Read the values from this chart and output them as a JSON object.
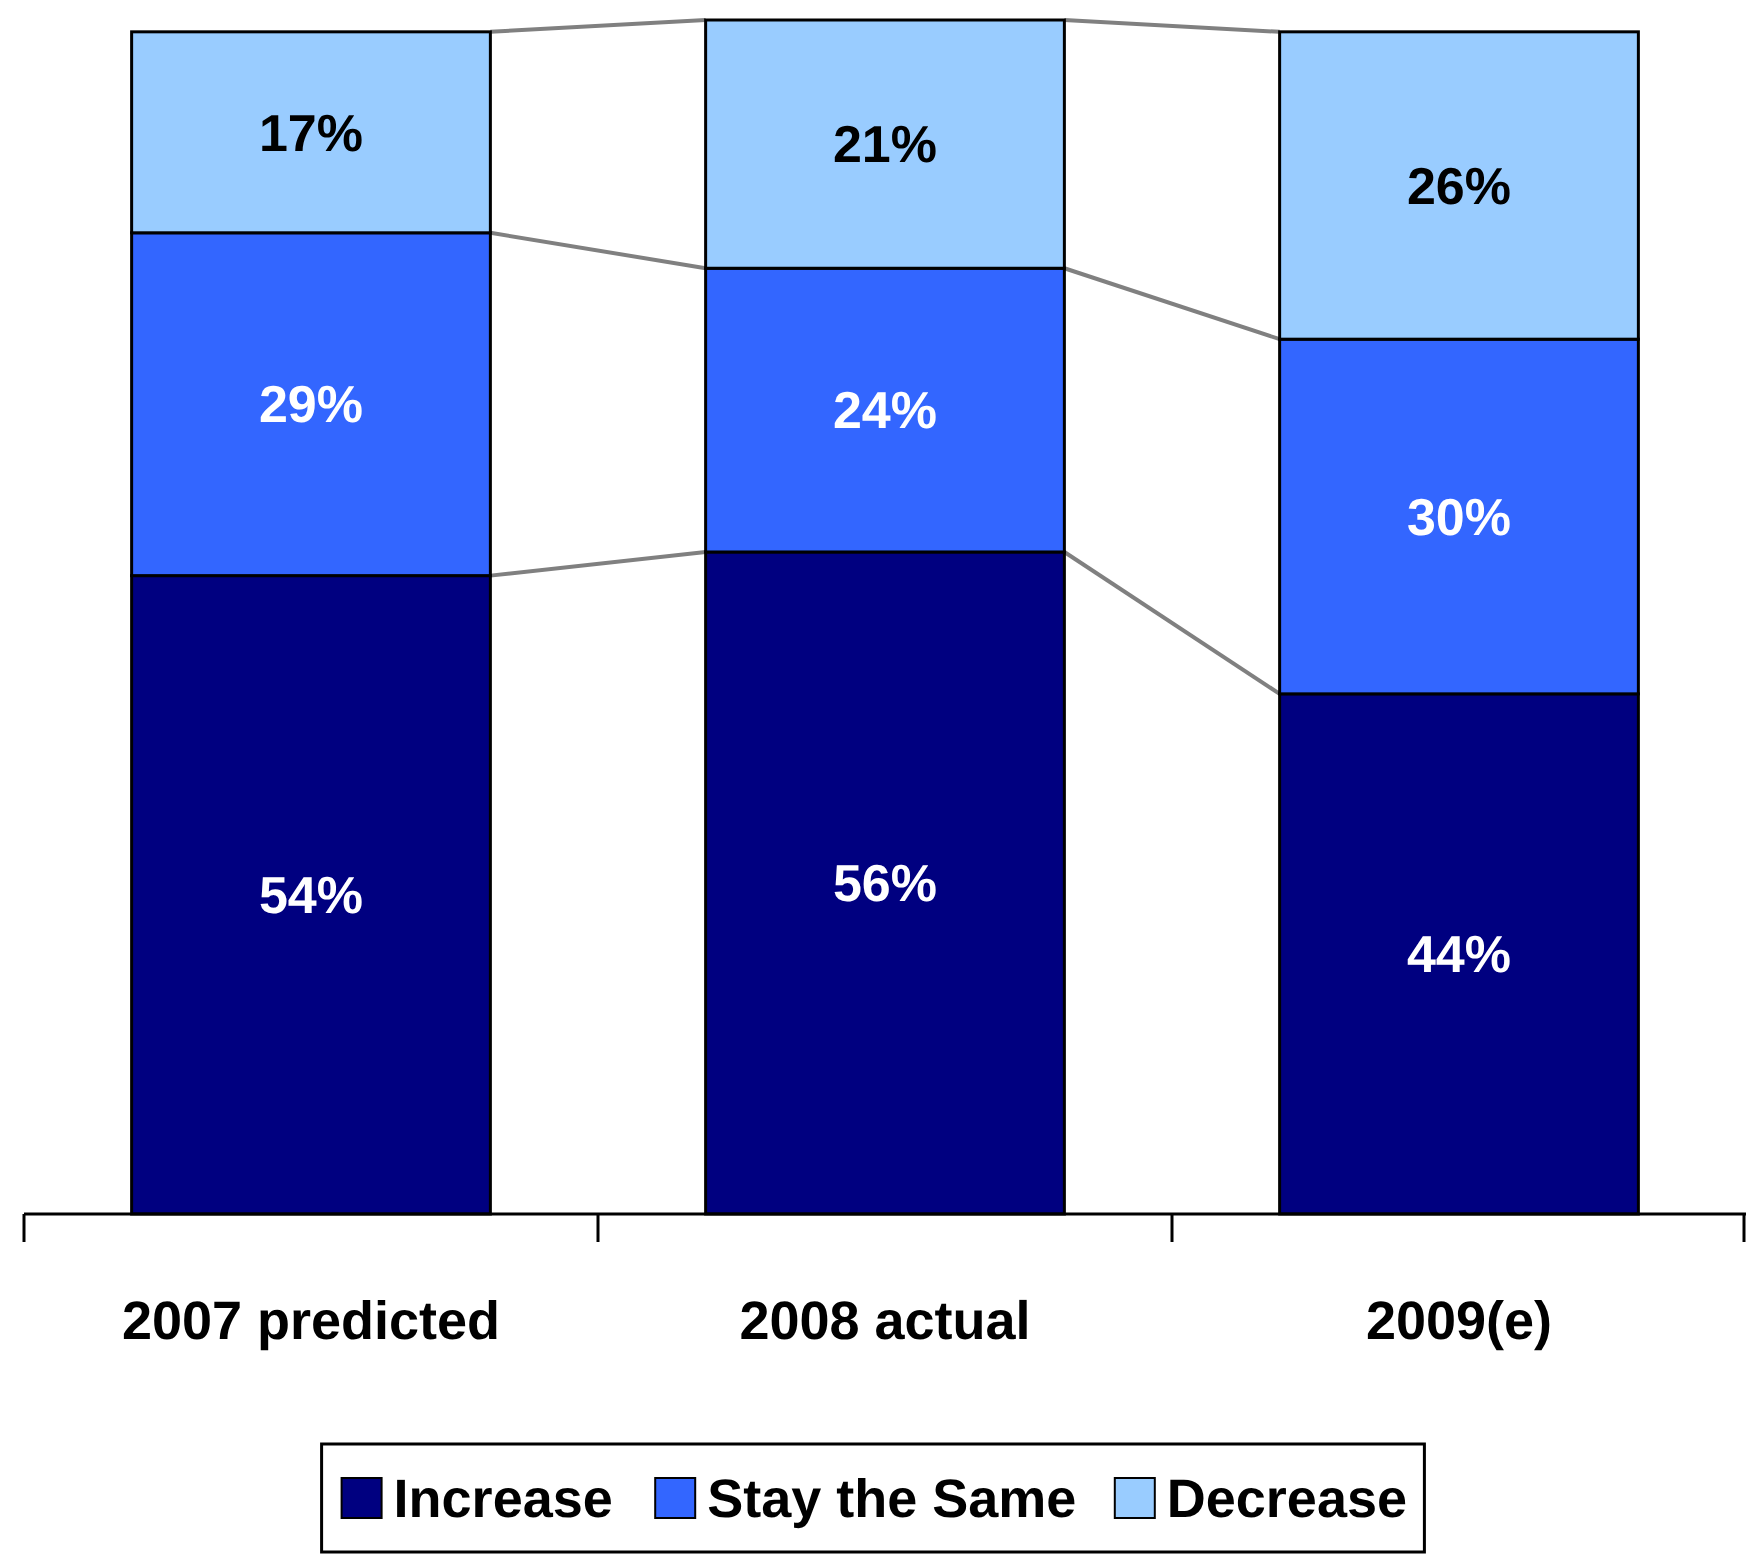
{
  "chart_data": {
    "type": "bar",
    "stacked": true,
    "categories": [
      "2007 predicted",
      "2008 actual",
      "2009(e)"
    ],
    "series": [
      {
        "name": "Increase",
        "color": "#000080",
        "values": [
          54,
          56,
          44
        ],
        "value_labels": [
          "54%",
          "56%",
          "44%"
        ]
      },
      {
        "name": "Stay the Same",
        "color": "#3366ff",
        "values": [
          29,
          24,
          30
        ],
        "value_labels": [
          "29%",
          "24%",
          "30%"
        ]
      },
      {
        "name": "Decrease",
        "color": "#99ccff",
        "values": [
          17,
          21,
          26
        ],
        "value_labels": [
          "17%",
          "21%",
          "26%"
        ]
      }
    ],
    "legend": "bottom"
  }
}
